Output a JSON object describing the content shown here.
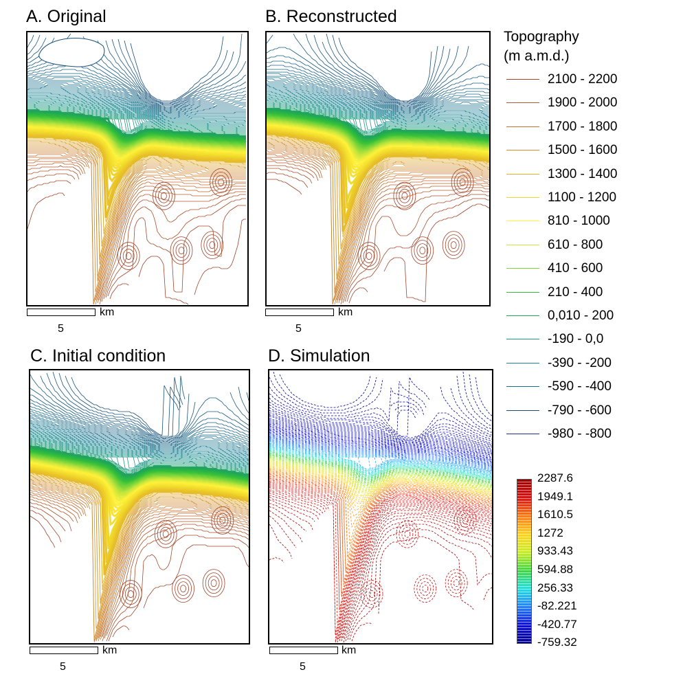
{
  "panels": [
    {
      "id": "A",
      "title": "A. Original",
      "style": "original",
      "hole": true
    },
    {
      "id": "B",
      "title": "B. Reconstructed",
      "style": "original",
      "hole": false
    },
    {
      "id": "C",
      "title": "C. Initial condition",
      "style": "original",
      "hole": false
    },
    {
      "id": "D",
      "title": "D. Simulation",
      "style": "simulation",
      "hole": false
    }
  ],
  "scale_bar": {
    "unit": "km",
    "value": "5"
  },
  "legend": {
    "title_line1": "Topography",
    "title_line2": "(m a.m.d.)",
    "items": [
      {
        "label": "2100 - 2200",
        "color": "#a0442a"
      },
      {
        "label": "1900 - 2000",
        "color": "#b35a2c"
      },
      {
        "label": "1700 - 1800",
        "color": "#c4732c"
      },
      {
        "label": "1500 - 1600",
        "color": "#d28e2c"
      },
      {
        "label": "1300 - 1400",
        "color": "#e2b02a"
      },
      {
        "label": "1100 - 1200",
        "color": "#f0d72a"
      },
      {
        "label": "810 - 1000",
        "color": "#fff23a"
      },
      {
        "label": "610 - 800",
        "color": "#c8e63c"
      },
      {
        "label": "410 - 600",
        "color": "#7ed63a"
      },
      {
        "label": "210 - 400",
        "color": "#34c038"
      },
      {
        "label": "0,010 - 200",
        "color": "#21a658"
      },
      {
        "label": "-190 - 0,0",
        "color": "#1f9a8a"
      },
      {
        "label": "-390 - -200",
        "color": "#1c8496"
      },
      {
        "label": "-590 - -400",
        "color": "#1a6a8a"
      },
      {
        "label": "-790 - -600",
        "color": "#174e78"
      },
      {
        "label": "-980 - -800",
        "color": "#1a2e8a"
      }
    ]
  },
  "colorbar": {
    "ticks": [
      "2287.6",
      "1949.1",
      "1610.5",
      "1272",
      "933.43",
      "594.88",
      "256.33",
      "-82.221",
      "-420.77",
      "-759.32"
    ],
    "colors": [
      "#9b0000",
      "#e01010",
      "#ff7a10",
      "#ffd21a",
      "#c8ee20",
      "#40d640",
      "#20e0e0",
      "#2080ff",
      "#1010e0",
      "#00008b"
    ]
  }
}
